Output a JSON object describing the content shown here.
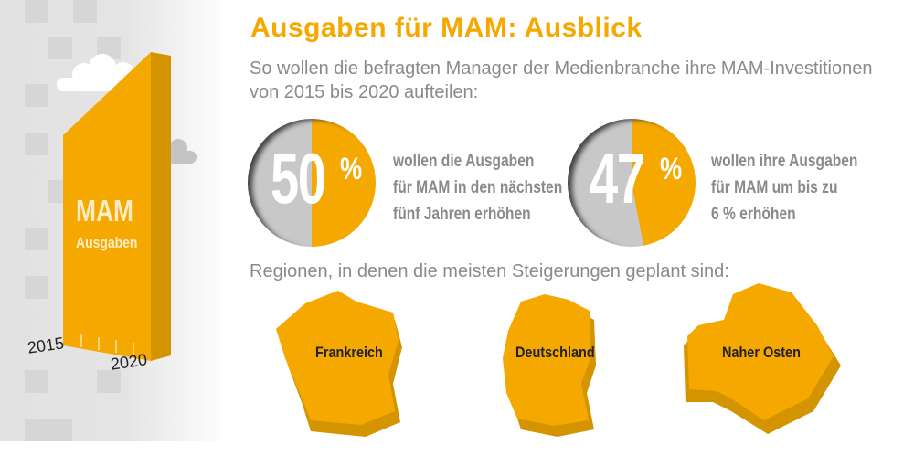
{
  "title": "Ausgaben für MAM: Ausblick",
  "subtitle": [
    "So wollen die befragten Manager der Medienbranche ihre MAM-Investitionen",
    "von 2015 bis 2020 aufteilen:"
  ],
  "bar": {
    "label": "MAM",
    "sublabel": "Ausgaben",
    "year_start": "2015",
    "year_end": "2020"
  },
  "stats": [
    {
      "value": "50",
      "unit": "%",
      "percent": 50,
      "lines": [
        "wollen die Ausgaben",
        "für MAM in den nächsten",
        "fünf Jahren erhöhen"
      ]
    },
    {
      "value": "47",
      "unit": "%",
      "percent": 47,
      "lines": [
        "wollen ihre Ausgaben",
        "für MAM um bis zu",
        "6 % erhöhen"
      ]
    }
  ],
  "regions_label": "Regionen, in denen die meisten Steigerungen geplant sind:",
  "regions": [
    "Frankreich",
    "Deutschland",
    "Naher Osten"
  ],
  "colors": {
    "accent": "#f5a800",
    "accent_dark": "#d39400",
    "grey": "#c8c8c8",
    "text": "#8a8a8a"
  }
}
